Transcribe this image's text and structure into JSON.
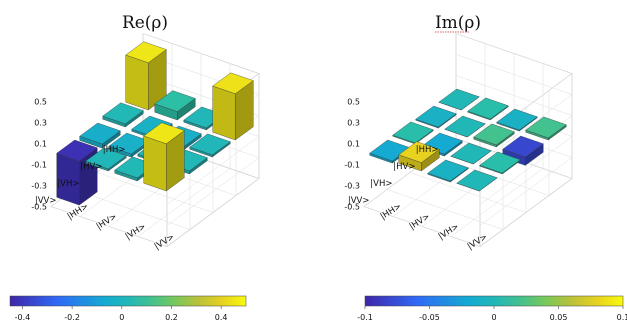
{
  "chart_data": [
    {
      "type": "bar3d",
      "title": "Re(ρ)",
      "row_labels": [
        "|HH>",
        "|HV>",
        "|VH>",
        "|VV>"
      ],
      "col_labels": [
        "|HH>",
        "|HV>",
        "|VH>",
        "|VV>"
      ],
      "zlim": [
        -0.5,
        0.5
      ],
      "zticks": [
        "0.5",
        "0.3",
        "0.1",
        "-0.1",
        "-0.3",
        "-0.5"
      ],
      "values": [
        [
          0.45,
          0.08,
          0.02,
          0.44
        ],
        [
          0.03,
          -0.02,
          -0.03,
          0.02
        ],
        [
          -0.04,
          -0.03,
          0.02,
          0.03
        ],
        [
          -0.42,
          0.02,
          0.03,
          0.45
        ]
      ],
      "colorbar": {
        "ticks": [
          "-0.4",
          "-0.2",
          "0",
          "0.2",
          "0.4"
        ],
        "range": [
          -0.45,
          0.5
        ]
      }
    },
    {
      "type": "bar3d",
      "title": "Im(ρ)",
      "row_labels": [
        "|HH>",
        "|HV>",
        "|VH>",
        "|VV>"
      ],
      "col_labels": [
        "|HH>",
        "|HV>",
        "|VH>",
        "|VV>"
      ],
      "zlim": [
        -0.5,
        0.5
      ],
      "zticks": [
        "0.5",
        "0.3",
        "0.1",
        "-0.1",
        "-0.3",
        "-0.5"
      ],
      "values": [
        [
          0.0,
          0.01,
          -0.01,
          0.02
        ],
        [
          -0.01,
          0.0,
          0.02,
          -0.08
        ],
        [
          0.01,
          -0.02,
          0.0,
          0.01
        ],
        [
          -0.02,
          0.08,
          -0.01,
          0.0
        ]
      ],
      "colorbar": {
        "ticks": [
          "-0.1",
          "-0.05",
          "0",
          "0.05",
          "0.1"
        ],
        "range": [
          -0.1,
          0.1
        ]
      }
    }
  ]
}
